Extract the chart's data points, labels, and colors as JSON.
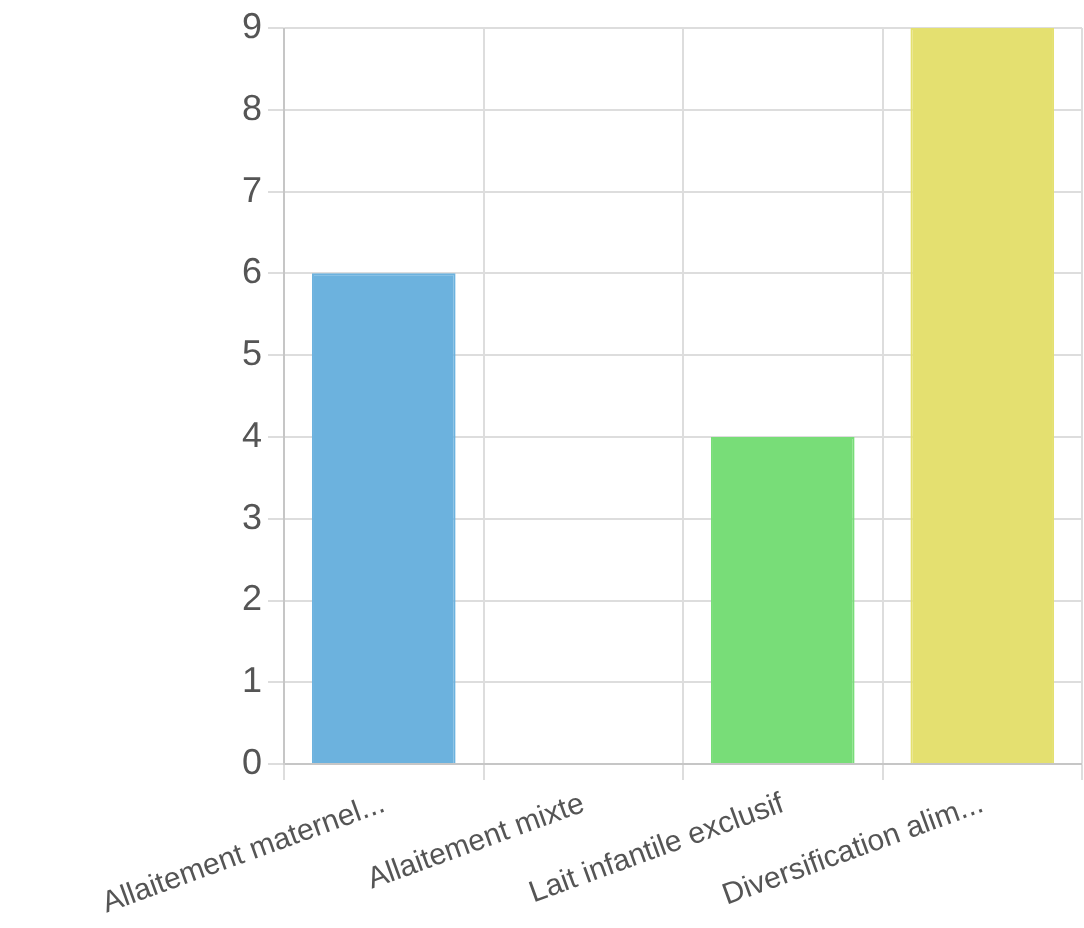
{
  "chart_data": {
    "type": "bar",
    "categories": [
      "Allaitement maternel...",
      "Allaitement mixte",
      "Lait infantile exclusif",
      "Diversification alim..."
    ],
    "values": [
      6,
      0,
      4,
      9
    ],
    "colors": [
      "#6cb2de",
      "#e8b0b0",
      "#78dd78",
      "#e4e070"
    ],
    "ylim": [
      0,
      9
    ],
    "yticks": [
      0,
      1,
      2,
      3,
      4,
      5,
      6,
      7,
      8,
      9
    ],
    "grid": true
  }
}
